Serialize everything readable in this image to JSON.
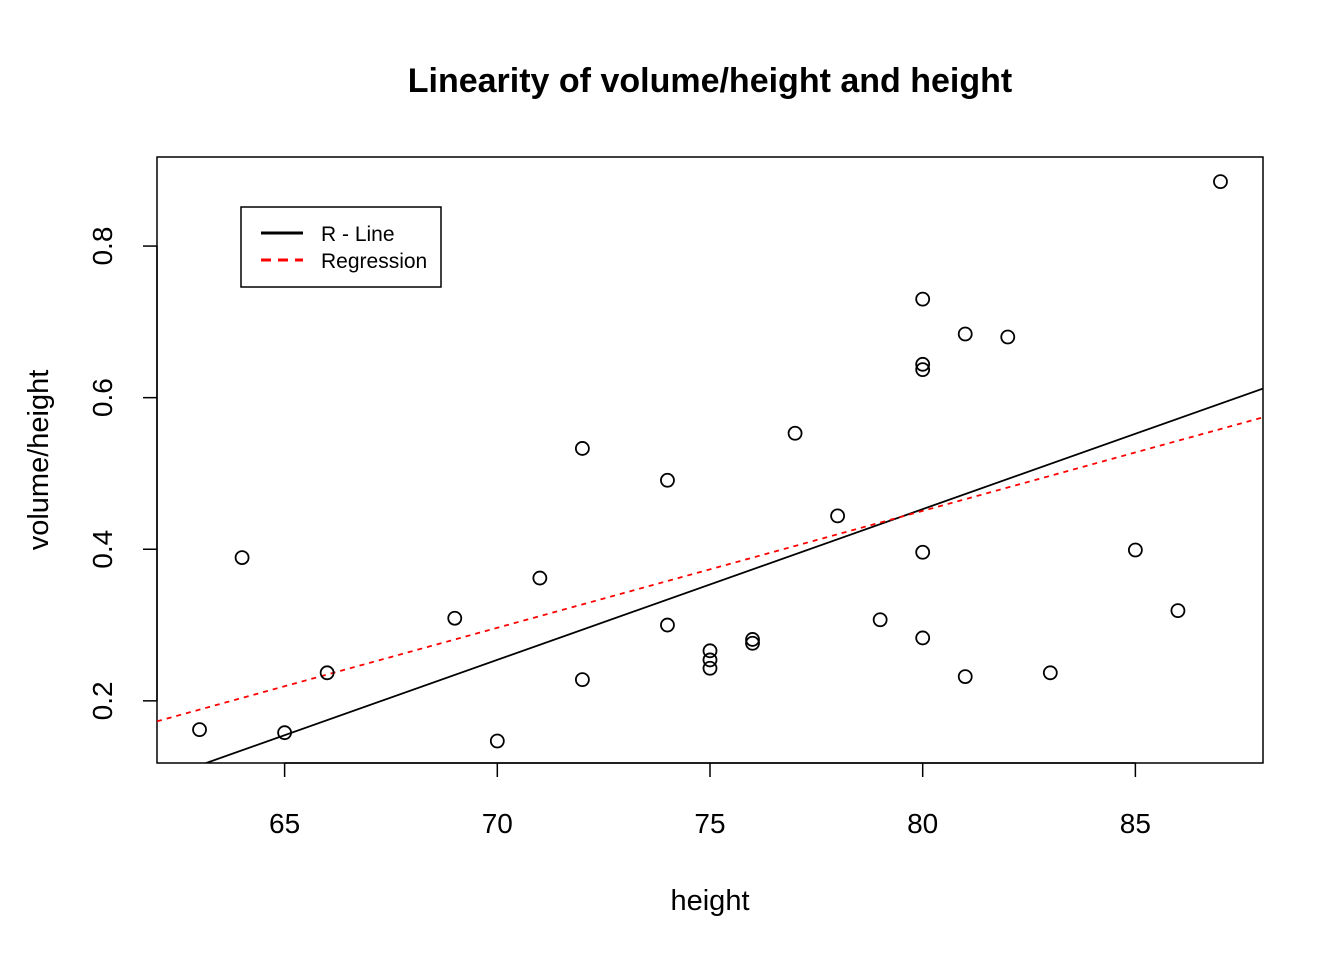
{
  "chart_data": {
    "type": "scatter",
    "title": "Linearity of volume/height and height",
    "xlabel": "height",
    "ylabel": "volume/height",
    "xlim": [
      62,
      88
    ],
    "ylim": [
      0.118,
      0.9175
    ],
    "x_ticks": [
      65,
      70,
      75,
      80,
      85
    ],
    "y_ticks": [
      0.2,
      0.4,
      0.6,
      0.8
    ],
    "x_tick_labels": [
      "65",
      "70",
      "75",
      "80",
      "85"
    ],
    "y_tick_labels": [
      "0.2",
      "0.4",
      "0.6",
      "0.8"
    ],
    "grid": false,
    "legend_position": "top-left",
    "points": [
      {
        "x": 63,
        "y": 0.162
      },
      {
        "x": 64,
        "y": 0.389
      },
      {
        "x": 65,
        "y": 0.158
      },
      {
        "x": 66,
        "y": 0.237
      },
      {
        "x": 69,
        "y": 0.309
      },
      {
        "x": 70,
        "y": 0.147
      },
      {
        "x": 71,
        "y": 0.362
      },
      {
        "x": 72,
        "y": 0.533
      },
      {
        "x": 72,
        "y": 0.228
      },
      {
        "x": 74,
        "y": 0.491
      },
      {
        "x": 74,
        "y": 0.3
      },
      {
        "x": 75,
        "y": 0.266
      },
      {
        "x": 75,
        "y": 0.254
      },
      {
        "x": 75,
        "y": 0.243
      },
      {
        "x": 76,
        "y": 0.281
      },
      {
        "x": 76,
        "y": 0.276
      },
      {
        "x": 77,
        "y": 0.553
      },
      {
        "x": 78,
        "y": 0.444
      },
      {
        "x": 79,
        "y": 0.307
      },
      {
        "x": 80,
        "y": 0.73
      },
      {
        "x": 80,
        "y": 0.644
      },
      {
        "x": 80,
        "y": 0.637
      },
      {
        "x": 80,
        "y": 0.396
      },
      {
        "x": 80,
        "y": 0.283
      },
      {
        "x": 81,
        "y": 0.684
      },
      {
        "x": 81,
        "y": 0.232
      },
      {
        "x": 82,
        "y": 0.68
      },
      {
        "x": 83,
        "y": 0.237
      },
      {
        "x": 85,
        "y": 0.399
      },
      {
        "x": 86,
        "y": 0.319
      },
      {
        "x": 87,
        "y": 0.885
      }
    ],
    "series": [
      {
        "name": "R - Line",
        "color": "#000000",
        "style": "solid",
        "x": [
          62,
          88
        ],
        "y": [
          0.095,
          0.612
        ]
      },
      {
        "name": "Regression",
        "color": "#ff0000",
        "style": "dashed",
        "x": [
          62,
          88
        ],
        "y": [
          0.173,
          0.574
        ]
      }
    ]
  }
}
